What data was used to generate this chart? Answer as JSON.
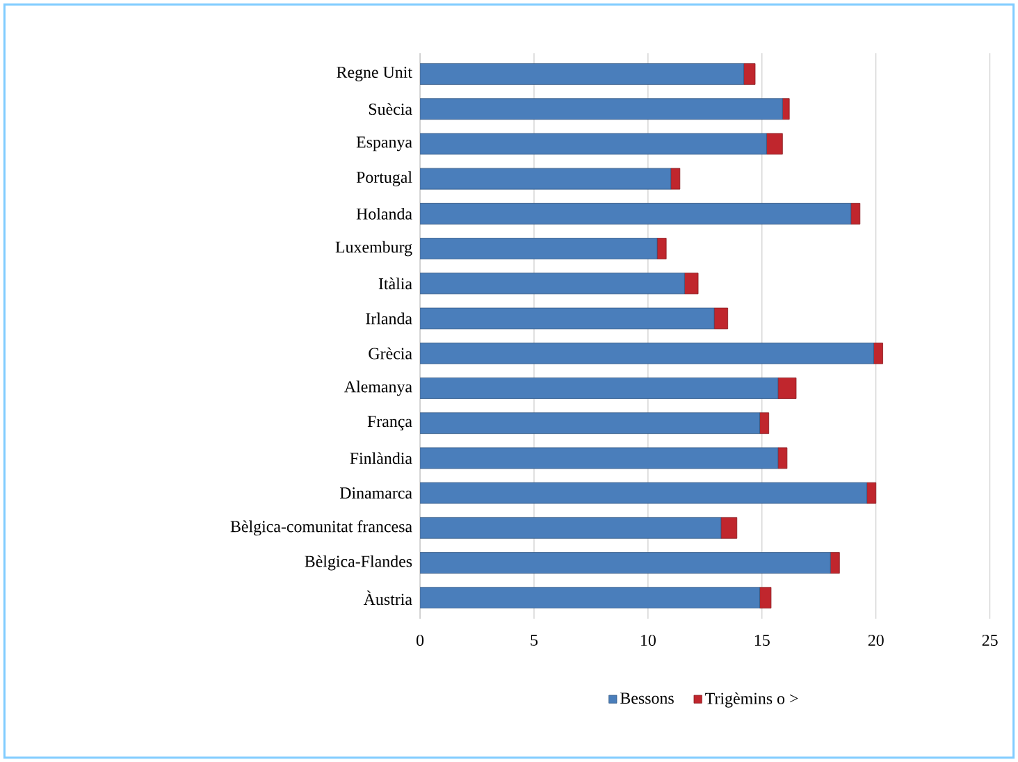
{
  "chart_data": {
    "type": "bar",
    "orientation": "horizontal",
    "stacked": true,
    "categories": [
      "Regne Unit",
      "Suècia",
      "Espanya",
      "Portugal",
      "Holanda",
      "Luxemburg",
      "Itàlia",
      "Irlanda",
      "Grècia",
      "Alemanya",
      "França",
      "Finlàndia",
      "Dinamarca",
      "Bèlgica-comunitat francesa",
      "Bèlgica-Flandes",
      "Àustria"
    ],
    "series": [
      {
        "name": "Bessons",
        "color": "#4a7ebb",
        "values": [
          14.2,
          15.9,
          15.2,
          11.0,
          18.9,
          10.4,
          11.6,
          12.9,
          19.9,
          15.7,
          14.9,
          15.7,
          19.6,
          13.2,
          18.0,
          14.9
        ]
      },
      {
        "name": "Trigèmins o >",
        "color": "#c0262d",
        "values": [
          0.5,
          0.3,
          0.7,
          0.4,
          0.4,
          0.4,
          0.6,
          0.6,
          0.4,
          0.8,
          0.4,
          0.4,
          0.4,
          0.7,
          0.4,
          0.5
        ]
      }
    ],
    "xlim": [
      0,
      25
    ],
    "xticks": [
      0,
      5,
      10,
      15,
      20,
      25
    ],
    "grid": "x",
    "legend": "bottom"
  }
}
